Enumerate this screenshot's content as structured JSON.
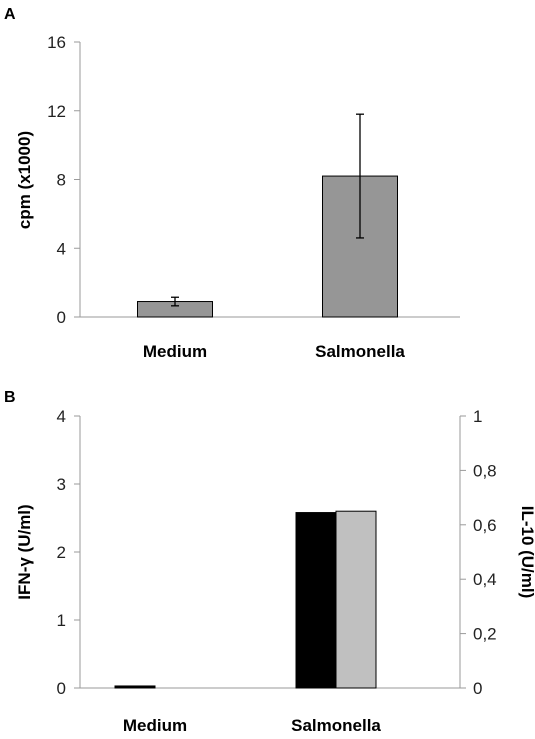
{
  "chart_data": [
    {
      "panel": "A",
      "type": "bar",
      "categories": [
        "Medium",
        "Salmonella"
      ],
      "series": [
        {
          "values": [
            0.9,
            8.2
          ],
          "error": [
            0.25,
            3.6
          ],
          "color": "#969696"
        }
      ],
      "ylabel": "cpm (x1000)",
      "ylim": [
        0,
        16
      ],
      "yticks": [
        "0",
        "4",
        "8",
        "12",
        "16"
      ],
      "grid": false
    },
    {
      "panel": "B",
      "type": "bar",
      "categories": [
        "Medium",
        "Salmonella"
      ],
      "series": [
        {
          "axis": "left",
          "values": [
            0.03,
            2.58
          ],
          "color": "#000000"
        },
        {
          "axis": "right",
          "values": [
            0,
            0.65
          ],
          "color": "#c0c0c0"
        }
      ],
      "ylabel": "IFN-γ (U/ml)",
      "ylim": [
        0,
        4
      ],
      "yticks": [
        "0",
        "1",
        "2",
        "3",
        "4"
      ],
      "ylabel_right": "IL-10 (U/ml)",
      "ylim_right": [
        0,
        1
      ],
      "yticks_right": [
        "0",
        "0,2",
        "0,4",
        "0,6",
        "0,8",
        "1"
      ],
      "grid": false
    }
  ]
}
